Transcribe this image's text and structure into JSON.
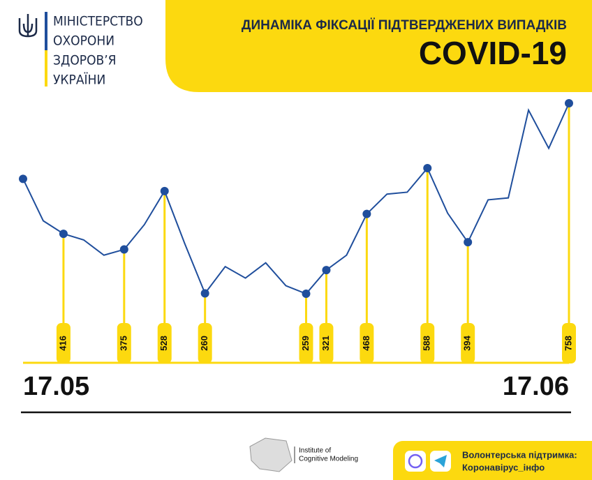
{
  "header": {
    "ministry": [
      "МІНІСТЕРСТВО",
      "ОХОРОНИ",
      "ЗДОРОВ’Я",
      "УКРАЇНИ"
    ]
  },
  "chart_data": {
    "type": "line",
    "title": "ДИНАМІКА ФІКСАЦІЇ ПІДТВЕРДЖЕНИХ ВИПАДКІВ",
    "subtitle": "COVID-19",
    "categories": [
      "17.05",
      null,
      null,
      null,
      null,
      null,
      null,
      null,
      null,
      null,
      null,
      null,
      null,
      null,
      null,
      null,
      null,
      null,
      null,
      null,
      null,
      null,
      null,
      null,
      null,
      null,
      null,
      "17.06"
    ],
    "values": [
      560,
      450,
      416,
      400,
      360,
      375,
      440,
      528,
      390,
      260,
      330,
      300,
      340,
      280,
      259,
      321,
      360,
      468,
      520,
      525,
      588,
      470,
      394,
      505,
      510,
      740,
      640,
      758
    ],
    "value_labels": [
      null,
      null,
      "416",
      null,
      null,
      "375",
      null,
      "528",
      null,
      "260",
      null,
      null,
      null,
      null,
      "259",
      "321",
      null,
      "468",
      null,
      null,
      "588",
      null,
      "394",
      null,
      null,
      null,
      null,
      "758"
    ],
    "color": "#1f4e9c"
  },
  "footer": {
    "institute": [
      "Institute of",
      "Cognitive Modeling"
    ],
    "support": [
      "Волонтерська підтримка:",
      "Коронавірус_інфо"
    ]
  }
}
